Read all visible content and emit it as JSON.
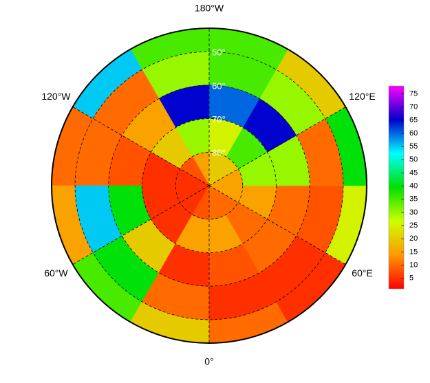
{
  "chart_data": {
    "type": "polar-map",
    "lon_labels": [
      {
        "value": 180,
        "label": "180°W"
      },
      {
        "value": -120,
        "label": "120°W"
      },
      {
        "value": 120,
        "label": "120°E"
      },
      {
        "value": -60,
        "label": "60°W"
      },
      {
        "value": 60,
        "label": "60°E"
      },
      {
        "value": 0,
        "label": "0°"
      }
    ],
    "lat_circles": [
      {
        "value": 50,
        "label": "50°"
      },
      {
        "value": 60,
        "label": "60°"
      },
      {
        "value": 70,
        "label": "70°"
      },
      {
        "value": 80,
        "label": "80°"
      }
    ],
    "latlim": [
      43,
      90
    ],
    "lat_bands": [
      43,
      50,
      60,
      70,
      80,
      90
    ],
    "lon_sectors": [
      -180,
      -150,
      -120,
      -90,
      -60,
      -30,
      0,
      30,
      60,
      90,
      120,
      150,
      180
    ],
    "values": [
      [
        35,
        55,
        10,
        15,
        35,
        20,
        10,
        5,
        25,
        40,
        20,
        35
      ],
      [
        30,
        10,
        10,
        55,
        40,
        10,
        5,
        5,
        8,
        10,
        30,
        35
      ],
      [
        65,
        15,
        8,
        40,
        20,
        5,
        8,
        10,
        10,
        30,
        65,
        60
      ],
      [
        30,
        20,
        5,
        5,
        5,
        15,
        15,
        10,
        15,
        30,
        35,
        25
      ],
      [
        15,
        8,
        5,
        5,
        5,
        8,
        10,
        10,
        15,
        15,
        20,
        20
      ]
    ],
    "colormap": [
      "#ff0000",
      "#ff9900",
      "#ccff00",
      "#00e000",
      "#00ffff",
      "#0000cc",
      "#ff00ff"
    ],
    "clim": [
      1,
      78
    ],
    "cticks": [
      5,
      10,
      15,
      20,
      25,
      30,
      35,
      40,
      45,
      50,
      55,
      60,
      65,
      70,
      75
    ]
  }
}
